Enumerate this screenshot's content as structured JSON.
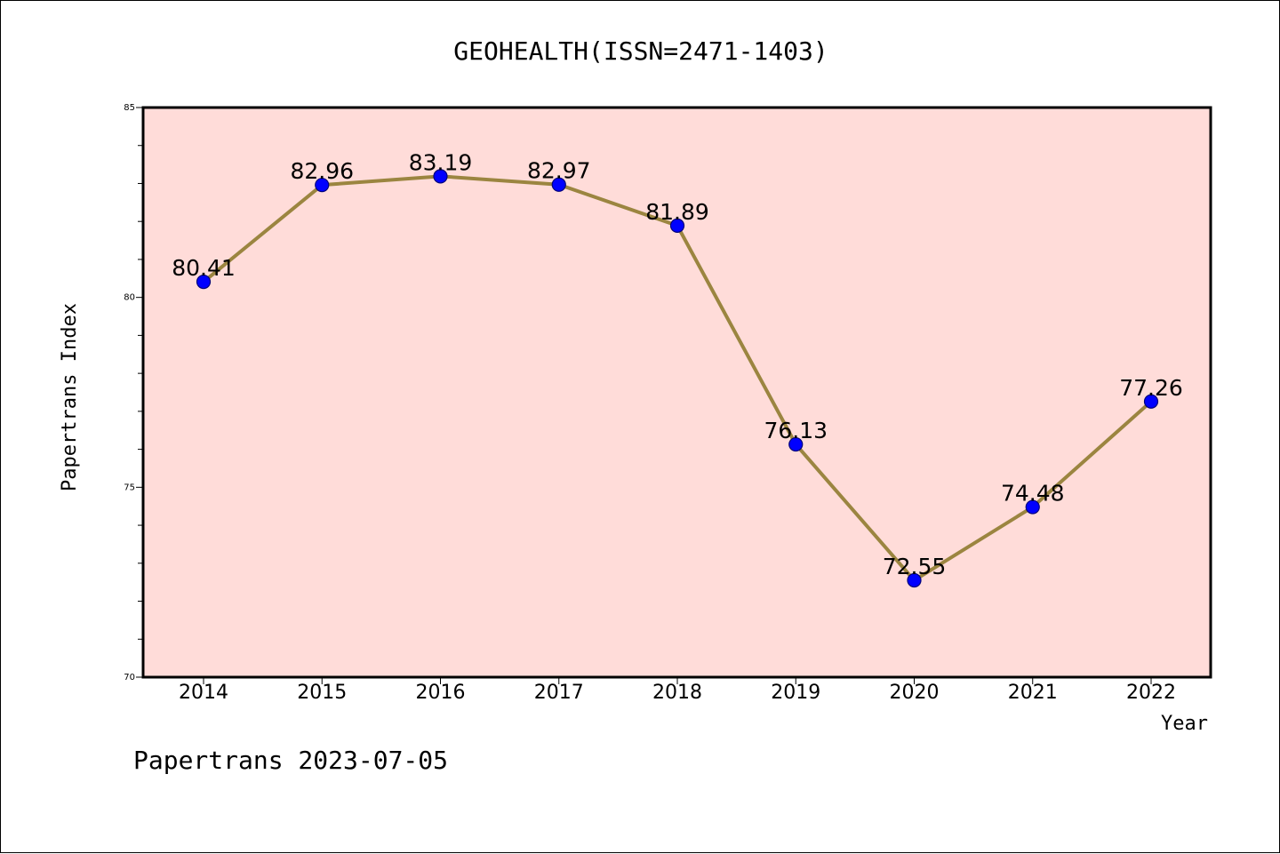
{
  "chart_data": {
    "type": "line",
    "title": "GEOHEALTH(ISSN=2471-1403)",
    "xlabel": "Year",
    "ylabel": "Papertrans Index",
    "x": [
      "2014",
      "2015",
      "2016",
      "2017",
      "2018",
      "2019",
      "2020",
      "2021",
      "2022"
    ],
    "series": [
      {
        "values": [
          80.41,
          82.96,
          83.19,
          82.97,
          81.89,
          76.13,
          72.55,
          74.48,
          77.26
        ],
        "labels": [
          "80.41",
          "82.96",
          "83.19",
          "82.97",
          "81.89",
          "76.13",
          "72.55",
          "74.48",
          "77.26"
        ]
      }
    ],
    "ylim": [
      70,
      85
    ],
    "yticks": [
      "70",
      "75",
      "80",
      "85"
    ],
    "grid": false,
    "legend": "none",
    "colors": {
      "plot_background": "#ffdcd9",
      "line": "#9b8540",
      "marker": "#0000ff",
      "marker_edge": "#00007a"
    }
  },
  "footer": {
    "text": "Papertrans 2023-07-05"
  }
}
